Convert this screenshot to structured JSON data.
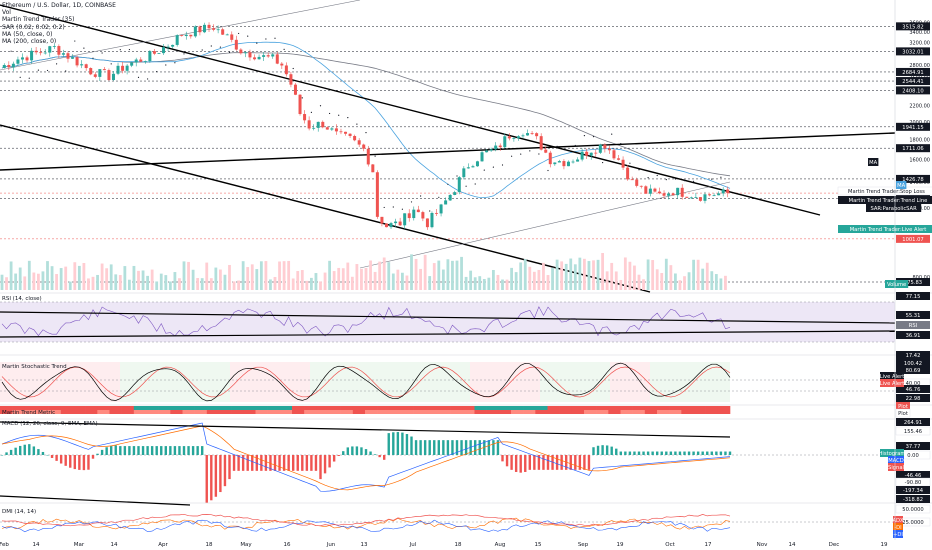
{
  "legend": {
    "lines": [
      "Ethereum / U.S. Dollar, 1D, COINBASE",
      "Vol",
      "Martin Trend Trader (35)",
      "SAR (0.02, 0.02, 0.2)",
      "MA (50, close, 0)",
      "MA (200, close, 0)"
    ]
  },
  "panel_labels": {
    "rsi": "RSI (14, close)",
    "stoch": "Martin Stochastic Trend",
    "metric": "Martin Trend Metric",
    "macd": "MACD (12, 26, close, 9, EMA, EMA)",
    "dmi": "DMI (14, 14)"
  },
  "colors": {
    "up": "#26a69a",
    "down": "#ef5350",
    "ma50": "#4aa3df",
    "ma200": "#787b86",
    "trend": "#000000",
    "rsi": "#7e57c2",
    "stoch_k": "#000000",
    "stoch_d": "#ef5350",
    "macd": "#2962ff",
    "signal": "#ff6d00",
    "adx": "#ef5350",
    "di_plus": "#2962ff",
    "di_minus": "#ff6d00"
  },
  "chart_data": {
    "type": "candlestick",
    "x_ticks": [
      "Feb",
      "14",
      "Mar",
      "14",
      "Apr",
      "18",
      "May",
      "16",
      "Jun",
      "13",
      "Jul",
      "18",
      "Aug",
      "15",
      "Sep",
      "19",
      "Oct",
      "17",
      "Nov",
      "14",
      "Dec",
      "19"
    ],
    "price_axis": [
      "3600.00",
      "3400.00",
      "3200.00",
      "3000.00",
      "2800.00",
      "2600.00",
      "2400.00",
      "2200.00",
      "2000.00",
      "1800.00",
      "1600.00",
      "1400.00",
      "1200.00",
      "1000.00",
      "800.00"
    ],
    "price_ylim": [
      740,
      3650
    ],
    "price_path": [
      [
        0,
        2750
      ],
      [
        4,
        2900
      ],
      [
        8,
        3000
      ],
      [
        12,
        3100
      ],
      [
        16,
        2900
      ],
      [
        20,
        2700
      ],
      [
        24,
        2620
      ],
      [
        28,
        2800
      ],
      [
        33,
        2950
      ],
      [
        37,
        3150
      ],
      [
        40,
        3350
      ],
      [
        44,
        3450
      ],
      [
        47,
        3500
      ],
      [
        50,
        3300
      ],
      [
        53,
        3050
      ],
      [
        57,
        2950
      ],
      [
        60,
        2900
      ],
      [
        62,
        2800
      ],
      [
        64,
        2500
      ],
      [
        66,
        2100
      ],
      [
        68,
        1950
      ],
      [
        71,
        1980
      ],
      [
        74,
        1850
      ],
      [
        77,
        1800
      ],
      [
        80,
        1700
      ],
      [
        82,
        1500
      ],
      [
        83,
        1150
      ],
      [
        85,
        1080
      ],
      [
        88,
        1100
      ],
      [
        91,
        1200
      ],
      [
        94,
        1100
      ],
      [
        97,
        1200
      ],
      [
        100,
        1350
      ],
      [
        103,
        1550
      ],
      [
        106,
        1650
      ],
      [
        109,
        1700
      ],
      [
        112,
        1850
      ],
      [
        115,
        1900
      ],
      [
        118,
        1800
      ],
      [
        121,
        1600
      ],
      [
        124,
        1580
      ],
      [
        127,
        1620
      ],
      [
        130,
        1700
      ],
      [
        133,
        1750
      ],
      [
        136,
        1600
      ],
      [
        139,
        1400
      ],
      [
        142,
        1320
      ],
      [
        145,
        1300
      ],
      [
        148,
        1330
      ],
      [
        151,
        1310
      ],
      [
        154,
        1290
      ],
      [
        157,
        1305
      ],
      [
        160,
        1310
      ]
    ],
    "volume_values": [
      3,
      5,
      4,
      6,
      3,
      4,
      7,
      5,
      4,
      3,
      5,
      6,
      4,
      5,
      3,
      4,
      6,
      5,
      4,
      3,
      5,
      7,
      6,
      5,
      4,
      8,
      6,
      5,
      4,
      9,
      7,
      6,
      5,
      6,
      4,
      5,
      6,
      5,
      4,
      5,
      7,
      6,
      5,
      4,
      5,
      6,
      7,
      5,
      4,
      6
    ],
    "right_price_labels": [
      {
        "text": "3515.82",
        "value": 3515.82,
        "bg": "#131722",
        "fg": "#ffffff"
      },
      {
        "text": "3032.01",
        "value": 3032.01,
        "bg": "#131722",
        "fg": "#ffffff"
      },
      {
        "text": "2684.91",
        "value": 2684.91,
        "bg": "#131722",
        "fg": "#ffffff"
      },
      {
        "text": "2544.41",
        "value": 2544.41,
        "bg": "#131722",
        "fg": "#ffffff"
      },
      {
        "text": "2408.10",
        "value": 2408.1,
        "bg": "#131722",
        "fg": "#ffffff"
      },
      {
        "text": "1941.15",
        "value": 1941.15,
        "bg": "#131722",
        "fg": "#ffffff"
      },
      {
        "text": "1711.06",
        "value": 1711.06,
        "bg": "#131722",
        "fg": "#ffffff"
      },
      {
        "text": "1426.78",
        "value": 1426.78,
        "bg": "#131722",
        "fg": "#ffffff"
      },
      {
        "text": "1312.20",
        "value": 1312.2,
        "bg": "#ef5350",
        "fg": "#ffffff"
      },
      {
        "text": "1269.54",
        "value": 1269.54,
        "bg": "#131722",
        "fg": "#ffffff"
      },
      {
        "text": "1001.07",
        "value": 1001.07,
        "bg": "#ef5350",
        "fg": "#ffffff"
      },
      {
        "text": "775.83",
        "value": 775.83,
        "bg": "#131722",
        "fg": "#ffffff"
      }
    ],
    "left_price_tags": [
      {
        "text": "MA",
        "bg": "#131722",
        "fg": "#ffffff"
      },
      {
        "text": "Martin Trend Trader:Stop Loss",
        "bg": "#ffffff",
        "fg": "#131722"
      },
      {
        "text": "Martin Trend Trader:Trend Line",
        "bg": "#131722",
        "fg": "#ffffff"
      },
      {
        "text": "SAR:ParabolicSAR",
        "bg": "#131722",
        "fg": "#ffffff"
      },
      {
        "text": "MA",
        "bg": "#4aa3df",
        "fg": "#ffffff"
      },
      {
        "text": "Martin Trend Trader:Live Alert",
        "bg": "#26a69a",
        "fg": "#ffffff"
      },
      {
        "text": "Volume",
        "bg": "#26a69a",
        "fg": "#ffffff"
      }
    ],
    "rsi": {
      "labels": [
        {
          "text": "77.15",
          "bg": "#131722",
          "fg": "#ffffff"
        },
        {
          "text": "55.31",
          "bg": "#131722",
          "fg": "#ffffff"
        },
        {
          "text": "RSI",
          "bg": "#787b86",
          "fg": "#ffffff"
        },
        {
          "text": "36.91",
          "bg": "#131722",
          "fg": "#ffffff"
        }
      ]
    },
    "stochastic": {
      "labels": [
        {
          "text": "17.42",
          "bg": "#131722",
          "fg": "#ffffff"
        },
        {
          "text": "100.42",
          "bg": "#131722",
          "fg": "#ffffff"
        },
        {
          "text": "80.69",
          "bg": "#131722",
          "fg": "#ffffff"
        },
        {
          "text": "40.00",
          "bg": "#ffffff",
          "fg": "#131722"
        },
        {
          "text": "20.00",
          "bg": "#ffffff",
          "fg": "#131722"
        },
        {
          "text": "46.76",
          "bg": "#131722",
          "fg": "#ffffff"
        },
        {
          "text": "22.98",
          "bg": "#131722",
          "fg": "#ffffff"
        }
      ],
      "tags": [
        {
          "text": "Live Alert",
          "bg": "#131722",
          "fg": "#ffffff"
        },
        {
          "text": "Live Alert",
          "bg": "#ef5350",
          "fg": "#ffffff"
        }
      ]
    },
    "metric": {
      "labels": [
        {
          "text": "Plot",
          "bg": "#ef5350",
          "fg": "#ffffff"
        },
        {
          "text": "Plot",
          "bg": "#ffffff",
          "fg": "#131722"
        }
      ]
    },
    "macd": {
      "labels": [
        {
          "text": "264.91",
          "bg": "#131722",
          "fg": "#ffffff"
        },
        {
          "text": "155.46",
          "bg": "#ffffff",
          "fg": "#131722"
        },
        {
          "text": "37.77",
          "bg": "#131722",
          "fg": "#ffffff"
        },
        {
          "text": "0.00",
          "bg": "#ffffff",
          "fg": "#131722"
        },
        {
          "text": "-46.46",
          "bg": "#131722",
          "fg": "#ffffff"
        },
        {
          "text": "-90.80",
          "bg": "#ffffff",
          "fg": "#131722"
        },
        {
          "text": "-197.34",
          "bg": "#131722",
          "fg": "#ffffff"
        },
        {
          "text": "-318.82",
          "bg": "#131722",
          "fg": "#ffffff"
        }
      ],
      "tags": [
        {
          "text": "Histogram",
          "bg": "#26a69a",
          "fg": "#ffffff"
        },
        {
          "text": "MACD",
          "bg": "#2962ff",
          "fg": "#ffffff"
        },
        {
          "text": "Signal",
          "bg": "#ef5350",
          "fg": "#ffffff"
        }
      ]
    },
    "dmi": {
      "labels": [
        {
          "text": "50.0000",
          "bg": "#ffffff",
          "fg": "#131722"
        },
        {
          "text": "25.0000",
          "bg": "#ffffff",
          "fg": "#131722"
        }
      ],
      "tags": [
        {
          "text": "ADX",
          "bg": "#ef5350",
          "fg": "#ffffff"
        },
        {
          "text": "-DI",
          "bg": "#ff6d00",
          "fg": "#ffffff"
        },
        {
          "text": "+DI",
          "bg": "#2962ff",
          "fg": "#ffffff"
        }
      ]
    }
  }
}
